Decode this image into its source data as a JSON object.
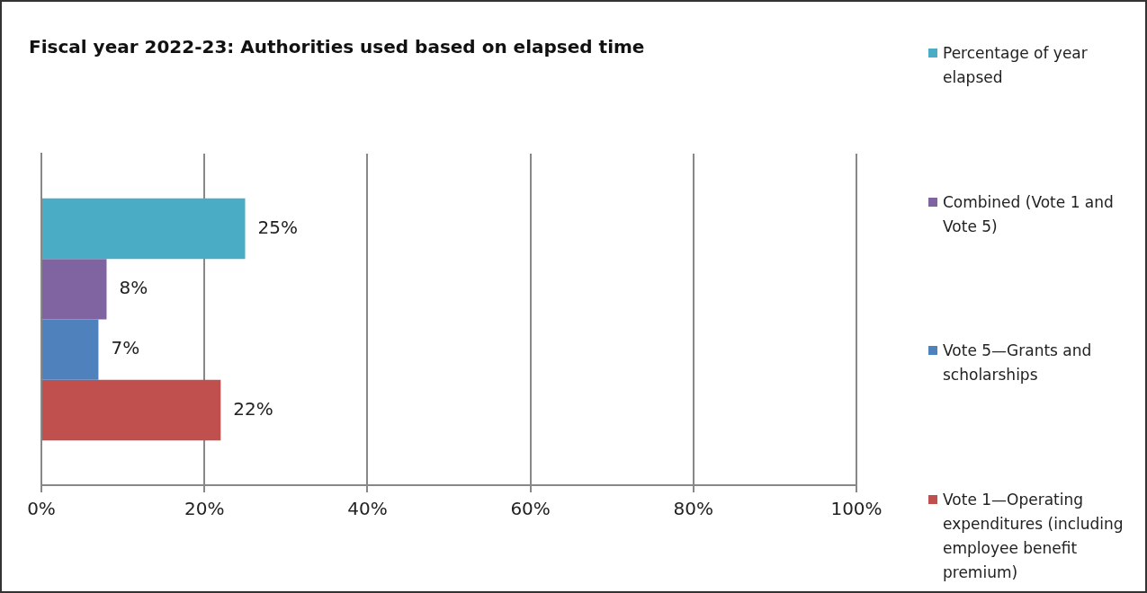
{
  "chart_data": {
    "type": "bar",
    "orientation": "horizontal",
    "title": "Fiscal year 2022-23: Authorities used based on elapsed time",
    "categories": [
      null
    ],
    "series": [
      {
        "name": "Percentage of year elapsed",
        "color": "#4bacc6",
        "values": [
          25
        ],
        "value_labels": [
          "25%"
        ]
      },
      {
        "name": "Combined (Vote 1 and Vote 5)",
        "color": "#8064a2",
        "values": [
          8
        ],
        "value_labels": [
          "8%"
        ]
      },
      {
        "name": "Vote 5—Grants and scholarships",
        "color": "#4f81bd",
        "values": [
          7
        ],
        "value_labels": [
          "7%"
        ]
      },
      {
        "name": "Vote 1—Operating expenditures (including employee benefit premium)",
        "color": "#c0504d",
        "values": [
          22
        ],
        "value_labels": [
          "22%"
        ]
      }
    ],
    "xlim": [
      0,
      100
    ],
    "xticks": [
      {
        "value": 0,
        "label": "0%"
      },
      {
        "value": 20,
        "label": "20%"
      },
      {
        "value": 40,
        "label": "40%"
      },
      {
        "value": 60,
        "label": "60%"
      },
      {
        "value": 80,
        "label": "80%"
      },
      {
        "value": 100,
        "label": "100%"
      }
    ],
    "grid": "x",
    "legend": "right"
  }
}
